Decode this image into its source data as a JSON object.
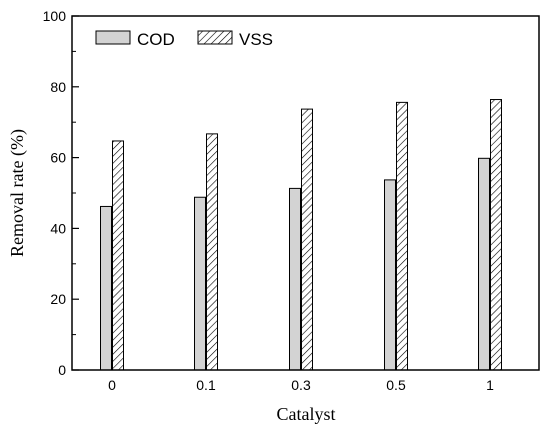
{
  "chart_data": {
    "type": "bar",
    "title": "",
    "xlabel": "Catalyst",
    "ylabel": "Removal rate (%)",
    "categories": [
      "0",
      "0.1",
      "0.3",
      "0.5",
      "1"
    ],
    "series": [
      {
        "name": "COD",
        "values": [
          46.2,
          48.8,
          51.3,
          53.7,
          59.8
        ],
        "fill": "#d3d3d3",
        "pattern": "solid"
      },
      {
        "name": "VSS",
        "values": [
          64.7,
          66.7,
          73.7,
          75.6,
          76.4
        ],
        "fill": "#ffffff",
        "pattern": "diagonal-hatch"
      }
    ],
    "ylim": [
      0,
      100
    ],
    "yticks": [
      "0",
      "20",
      "40",
      "60",
      "80",
      "100"
    ],
    "grid": false,
    "legend": "top-left"
  }
}
